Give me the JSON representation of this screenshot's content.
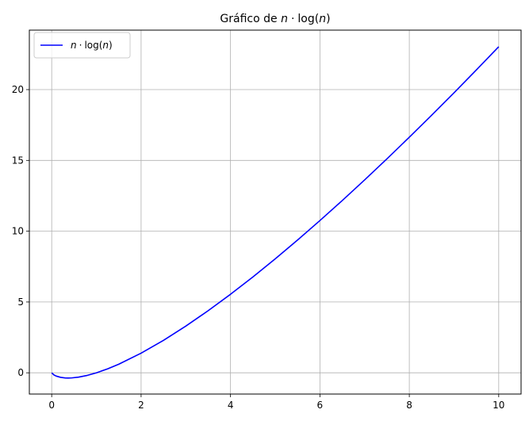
{
  "chart_data": {
    "type": "line",
    "title": "Gráfico de n · log(n)",
    "title_parts": {
      "prefix": "Gráfico de ",
      "formula_n": "n",
      "formula_op": "·",
      "formula_fn": "log(",
      "formula_arg": "n",
      "formula_close": ")"
    },
    "xlabel": "",
    "ylabel": "",
    "xlim": [
      -0.5,
      10.5
    ],
    "ylim": [
      -1.5,
      24.2
    ],
    "xticks": [
      0,
      2,
      4,
      6,
      8,
      10
    ],
    "yticks": [
      0,
      5,
      10,
      15,
      20
    ],
    "grid": true,
    "legend_position": "top-left",
    "series": [
      {
        "name": "n · log(n)",
        "name_parts": {
          "n": "n",
          "op": "·",
          "fn": "log(",
          "arg": "n",
          "close": ")"
        },
        "color": "#0000ff",
        "x": [
          0.001,
          0.05,
          0.1,
          0.2,
          0.3,
          0.368,
          0.45,
          0.6,
          0.8,
          1.0,
          1.25,
          1.5,
          2.0,
          2.5,
          3.0,
          3.5,
          4.0,
          4.5,
          5.0,
          5.5,
          6.0,
          6.5,
          7.0,
          7.5,
          8.0,
          8.5,
          9.0,
          9.5,
          10.0
        ],
        "y": [
          -0.007,
          -0.15,
          -0.23,
          -0.32,
          -0.361,
          -0.368,
          -0.359,
          -0.306,
          -0.179,
          0.0,
          0.279,
          0.608,
          1.386,
          2.291,
          3.296,
          4.385,
          5.545,
          6.768,
          8.047,
          9.376,
          10.751,
          12.166,
          13.621,
          15.112,
          16.636,
          18.191,
          19.775,
          21.387,
          23.026
        ]
      }
    ]
  }
}
